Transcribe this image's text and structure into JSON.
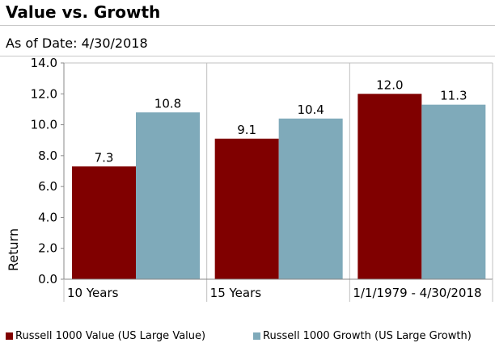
{
  "header": {
    "title": "Value vs. Growth",
    "subtitle": "As of Date: 4/30/2018"
  },
  "chart_data": {
    "type": "bar",
    "categories": [
      "10 Years",
      "15 Years",
      "1/1/1979 - 4/30/2018"
    ],
    "series": [
      {
        "name": "Russell 1000 Value (US Large Value)",
        "values": [
          7.3,
          9.1,
          12.0
        ],
        "labels": [
          "7.3",
          "9.1",
          "12.0"
        ],
        "color": "#800000"
      },
      {
        "name": "Russell 1000 Growth (US Large Growth)",
        "values": [
          10.8,
          10.4,
          11.3
        ],
        "labels": [
          "10.8",
          "10.4",
          "11.3"
        ],
        "color": "#7faaba"
      }
    ],
    "ylabel": "Return",
    "xlabel": "",
    "ylim": [
      0,
      14
    ],
    "yticks": [
      "0.0",
      "2.0",
      "4.0",
      "6.0",
      "8.0",
      "10.0",
      "12.0",
      "14.0"
    ],
    "grid": "vertical separators only",
    "legend_position": "bottom"
  }
}
